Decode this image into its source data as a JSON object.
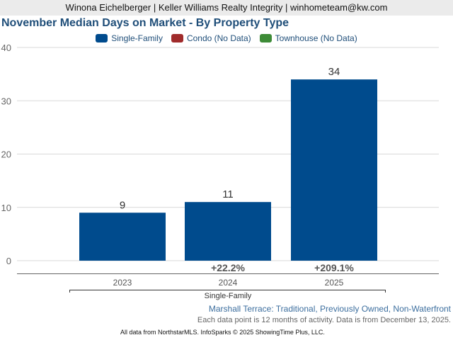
{
  "header": {
    "agent_line": "Winona Eichelberger | Keller Williams Realty Integrity | winhometeam@kw.com"
  },
  "legend": [
    {
      "label": "Single-Family",
      "color": "#004b8d"
    },
    {
      "label": "Condo (No Data)",
      "color": "#a02b2b"
    },
    {
      "label": "Townhouse (No Data)",
      "color": "#3d8b37"
    }
  ],
  "footer": {
    "subtitle": "Marshall Terrace: Traditional, Previously Owned, Non-Waterfront",
    "note": "Each data point is 12 months of activity. Data is from December 13, 2025.",
    "credit": "All data from NorthstarMLS. InfoSparks © 2025 ShowingTime Plus, LLC."
  },
  "chart_data": {
    "type": "bar",
    "title": "November Median Days on Market - By Property Type",
    "xlabel": "",
    "ylabel": "",
    "group_label": "Single-Family",
    "categories": [
      "2023",
      "2024",
      "2025"
    ],
    "series": [
      {
        "name": "Single-Family",
        "color": "#004b8d",
        "values": [
          9,
          11,
          34
        ]
      }
    ],
    "data_labels": [
      "9",
      "11",
      "34"
    ],
    "change_labels": [
      "",
      "+22.2%",
      "+209.1%"
    ],
    "ylim": [
      0,
      40
    ],
    "yticks": [
      0,
      10,
      20,
      30,
      40
    ],
    "grid": true,
    "legend_position": "top-center"
  }
}
